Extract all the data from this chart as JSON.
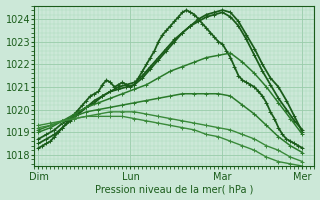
{
  "bg_color": "#cce8d8",
  "grid_color_major": "#99ccaa",
  "grid_color_minor": "#aadabb",
  "line_color_dark": "#1a5c1a",
  "line_color_mid": "#2a7a2a",
  "line_color_light": "#3a8a3a",
  "xlabel": "Pression niveau de la mer( hPa )",
  "xtick_labels": [
    "Dim",
    "Lun",
    "Mar",
    "Mer"
  ],
  "ylim": [
    1017.5,
    1024.6
  ],
  "yticks": [
    1018,
    1019,
    1020,
    1021,
    1022,
    1023,
    1024
  ],
  "xlim": [
    -1,
    69
  ],
  "xtick_positions": [
    0,
    23,
    46,
    66
  ],
  "series": [
    {
      "x": [
        0,
        1,
        2,
        3,
        4,
        5,
        6,
        7,
        8,
        9,
        10,
        11,
        12,
        13,
        14,
        15,
        16,
        17,
        18,
        19,
        20,
        21,
        22,
        23,
        24,
        25,
        26,
        27,
        28,
        29,
        30,
        31,
        32,
        33,
        34,
        35,
        36,
        37,
        38,
        39,
        40,
        41,
        42,
        43,
        44,
        45,
        46,
        47,
        48,
        49,
        50,
        51,
        52,
        53,
        54,
        55,
        56,
        57,
        58,
        59,
        60,
        61,
        62,
        63,
        64,
        65,
        66
      ],
      "y": [
        1018.3,
        1018.4,
        1018.5,
        1018.6,
        1018.8,
        1019.0,
        1019.2,
        1019.4,
        1019.6,
        1019.8,
        1020.0,
        1020.2,
        1020.4,
        1020.6,
        1020.7,
        1020.8,
        1021.1,
        1021.3,
        1021.2,
        1021.0,
        1021.1,
        1021.2,
        1021.1,
        1021.0,
        1021.1,
        1021.4,
        1021.7,
        1022.0,
        1022.3,
        1022.6,
        1023.0,
        1023.3,
        1023.5,
        1023.7,
        1023.9,
        1024.1,
        1024.3,
        1024.4,
        1024.3,
        1024.2,
        1024.0,
        1023.8,
        1023.6,
        1023.4,
        1023.2,
        1023.0,
        1022.9,
        1022.6,
        1022.3,
        1021.9,
        1021.5,
        1021.3,
        1021.2,
        1021.1,
        1021.0,
        1020.8,
        1020.6,
        1020.3,
        1019.9,
        1019.6,
        1019.2,
        1018.9,
        1018.7,
        1018.6,
        1018.5,
        1018.4,
        1018.3
      ],
      "style": "dark",
      "lw": 1.3,
      "marker": "+"
    },
    {
      "x": [
        0,
        2,
        4,
        6,
        8,
        10,
        12,
        14,
        16,
        18,
        20,
        22,
        24,
        26,
        28,
        30,
        32,
        34,
        36,
        38,
        40,
        42,
        44,
        46,
        48,
        50,
        52,
        54,
        56,
        58,
        60,
        62,
        64,
        66
      ],
      "y": [
        1018.5,
        1018.7,
        1018.9,
        1019.2,
        1019.5,
        1019.8,
        1020.1,
        1020.3,
        1020.6,
        1020.8,
        1020.9,
        1021.0,
        1021.1,
        1021.4,
        1021.8,
        1022.2,
        1022.6,
        1023.0,
        1023.4,
        1023.7,
        1024.0,
        1024.2,
        1024.3,
        1024.4,
        1024.3,
        1023.9,
        1023.3,
        1022.7,
        1022.0,
        1021.4,
        1021.0,
        1020.4,
        1019.7,
        1019.0
      ],
      "style": "dark",
      "lw": 1.3,
      "marker": "+"
    },
    {
      "x": [
        0,
        2,
        4,
        6,
        8,
        10,
        12,
        14,
        16,
        18,
        20,
        22,
        24,
        26,
        28,
        30,
        32,
        34,
        36,
        38,
        40,
        42,
        44,
        46,
        48,
        50,
        52,
        54,
        56,
        58,
        60,
        62,
        64,
        66
      ],
      "y": [
        1018.7,
        1018.9,
        1019.1,
        1019.4,
        1019.6,
        1019.9,
        1020.1,
        1020.4,
        1020.6,
        1020.8,
        1021.0,
        1021.1,
        1021.2,
        1021.5,
        1021.9,
        1022.3,
        1022.7,
        1023.1,
        1023.4,
        1023.7,
        1023.9,
        1024.1,
        1024.2,
        1024.3,
        1024.1,
        1023.7,
        1023.1,
        1022.4,
        1021.7,
        1021.1,
        1020.5,
        1020.0,
        1019.5,
        1019.1
      ],
      "style": "dark",
      "lw": 1.3,
      "marker": "+"
    },
    {
      "x": [
        0,
        3,
        6,
        9,
        12,
        15,
        18,
        21,
        24,
        27,
        30,
        33,
        36,
        39,
        42,
        45,
        48,
        51,
        54,
        57,
        60,
        63,
        66
      ],
      "y": [
        1019.0,
        1019.2,
        1019.5,
        1019.8,
        1020.1,
        1020.3,
        1020.5,
        1020.7,
        1020.9,
        1021.1,
        1021.4,
        1021.7,
        1021.9,
        1022.1,
        1022.3,
        1022.4,
        1022.5,
        1022.1,
        1021.6,
        1021.0,
        1020.3,
        1019.6,
        1018.9
      ],
      "style": "mid",
      "lw": 1.1,
      "marker": "+"
    },
    {
      "x": [
        0,
        3,
        6,
        9,
        12,
        15,
        18,
        21,
        24,
        27,
        30,
        33,
        36,
        39,
        42,
        45,
        48,
        51,
        54,
        57,
        60,
        63,
        66
      ],
      "y": [
        1019.1,
        1019.3,
        1019.5,
        1019.7,
        1019.9,
        1020.0,
        1020.1,
        1020.2,
        1020.3,
        1020.4,
        1020.5,
        1020.6,
        1020.7,
        1020.7,
        1020.7,
        1020.7,
        1020.6,
        1020.2,
        1019.8,
        1019.3,
        1018.8,
        1018.4,
        1018.1
      ],
      "style": "mid",
      "lw": 1.1,
      "marker": "+"
    },
    {
      "x": [
        0,
        3,
        6,
        9,
        12,
        15,
        18,
        21,
        24,
        27,
        30,
        33,
        36,
        39,
        42,
        45,
        48,
        51,
        54,
        57,
        60,
        63,
        66
      ],
      "y": [
        1019.2,
        1019.3,
        1019.5,
        1019.6,
        1019.7,
        1019.8,
        1019.9,
        1019.9,
        1019.9,
        1019.8,
        1019.7,
        1019.6,
        1019.5,
        1019.4,
        1019.3,
        1019.2,
        1019.1,
        1018.9,
        1018.7,
        1018.4,
        1018.2,
        1017.9,
        1017.7
      ],
      "style": "light",
      "lw": 1.0,
      "marker": "+"
    },
    {
      "x": [
        0,
        3,
        6,
        9,
        12,
        15,
        18,
        21,
        24,
        27,
        30,
        33,
        36,
        39,
        42,
        45,
        48,
        51,
        54,
        57,
        60,
        63,
        66
      ],
      "y": [
        1019.3,
        1019.4,
        1019.5,
        1019.6,
        1019.7,
        1019.7,
        1019.7,
        1019.7,
        1019.6,
        1019.5,
        1019.4,
        1019.3,
        1019.2,
        1019.1,
        1018.9,
        1018.8,
        1018.6,
        1018.4,
        1018.2,
        1017.9,
        1017.7,
        1017.6,
        1017.5
      ],
      "style": "light",
      "lw": 1.0,
      "marker": "+"
    }
  ]
}
